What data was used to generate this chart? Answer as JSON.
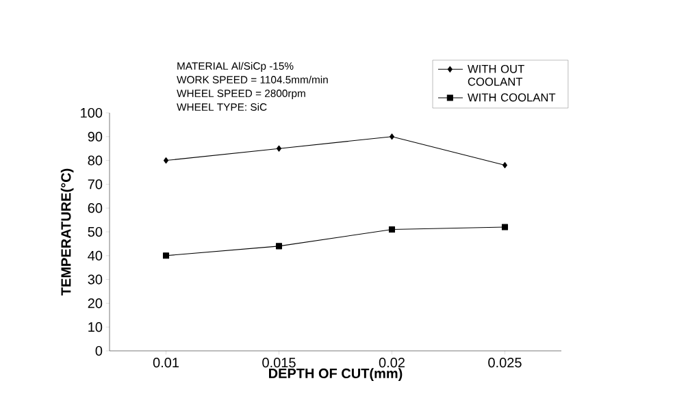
{
  "chart_data": {
    "type": "line",
    "xlabel": "DEPTH OF CUT(mm)",
    "ylabel": "TEMPERATURE(°C)",
    "categories": [
      "0.01",
      "0.015",
      "0.02",
      "0.025"
    ],
    "series": [
      {
        "name": "WITH OUT COOLANT",
        "color": "#000000",
        "marker": "diamond",
        "values": [
          80,
          85,
          90,
          78
        ]
      },
      {
        "name": "WITH COOLANT",
        "color": "#000000",
        "marker": "square",
        "values": [
          40,
          44,
          51,
          52
        ]
      }
    ],
    "ylim": [
      0,
      100
    ],
    "yticks": [
      0,
      10,
      20,
      30,
      40,
      50,
      60,
      70,
      80,
      90,
      100
    ],
    "legend": "top right",
    "grid": false,
    "annotations": [
      "MATERIAL Al/SiCp -15%",
      "WORK SPEED = 1104.5mm/min",
      "WHEEL SPEED = 2800rpm",
      "WHEEL TYPE: SiC"
    ]
  }
}
